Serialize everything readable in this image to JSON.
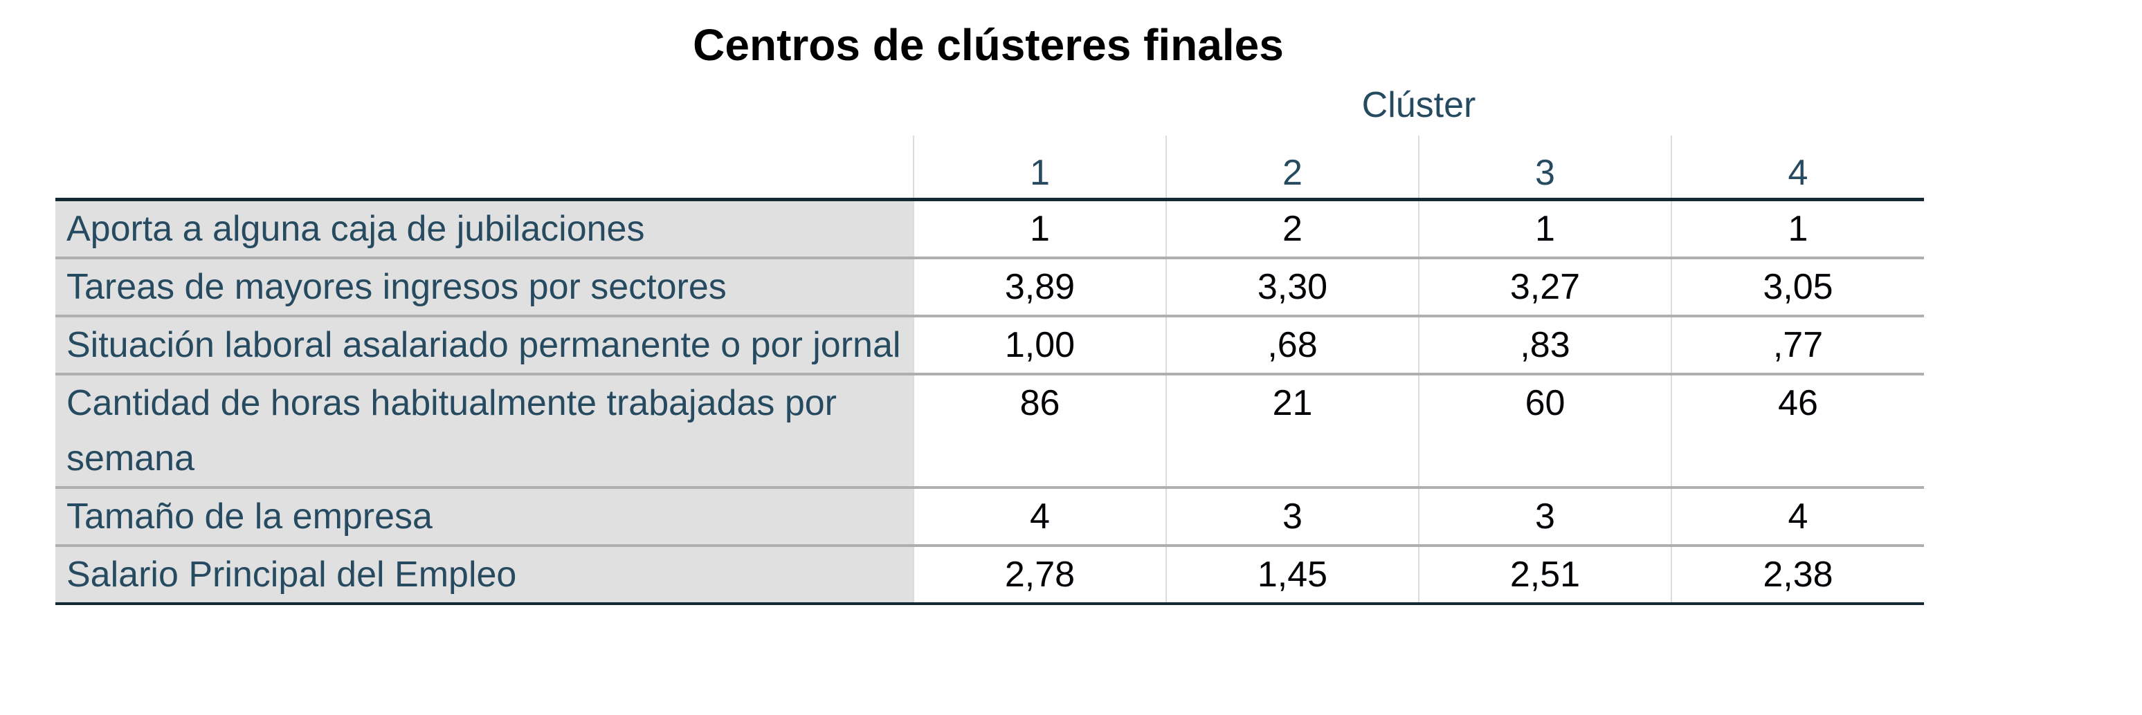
{
  "title": "Centros de clústeres finales",
  "column_group_label": "Clúster",
  "columns": [
    "1",
    "2",
    "3",
    "4"
  ],
  "rows": [
    {
      "label": "Aporta a alguna caja de jubilaciones",
      "values": [
        "1",
        "2",
        "1",
        "1"
      ]
    },
    {
      "label": "Tareas de mayores ingresos por sectores",
      "values": [
        "3,89",
        "3,30",
        "3,27",
        "3,05"
      ]
    },
    {
      "label": "Situación laboral asalariado permanente o por jornal",
      "values": [
        "1,00",
        ",68",
        ",83",
        ",77"
      ]
    },
    {
      "label": "Cantidad de horas habitualmente trabajadas por semana",
      "values": [
        "86",
        "21",
        "60",
        "46"
      ]
    },
    {
      "label": "Tamaño  de la empresa",
      "values": [
        "4",
        "3",
        "3",
        "4"
      ]
    },
    {
      "label": "Salario Principal del Empleo",
      "values": [
        "2,78",
        "1,45",
        "2,51",
        "2,38"
      ]
    }
  ]
}
